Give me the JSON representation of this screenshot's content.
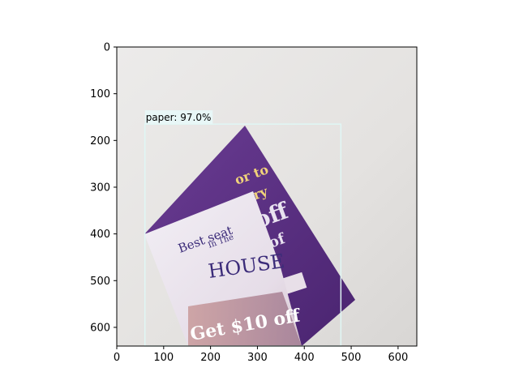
{
  "axes": {
    "x_range": [
      0,
      640
    ],
    "y_range": [
      640,
      0
    ],
    "x_ticks": [
      0,
      100,
      200,
      300,
      400,
      500,
      600
    ],
    "y_ticks": [
      0,
      100,
      200,
      300,
      400,
      500,
      600
    ],
    "grid": false
  },
  "image": {
    "scene": "photo of folded purple and white coupon paper on a light grey surface",
    "flyer_text": {
      "line1": "Best seat",
      "line2": "In The",
      "line3": "HOUSE",
      "offer": "Get $10 off",
      "purple_fragments": [
        "or to",
        "ery",
        "off",
        "of"
      ]
    }
  },
  "detection": {
    "label": "paper: 97.0%",
    "class": "paper",
    "score_percent": 97.0,
    "box": {
      "x_min": 60,
      "y_min": 165,
      "x_max": 478,
      "y_max": 640
    },
    "box_color": "#e0f7f5",
    "label_bg": "#e8f7f7"
  },
  "colors": {
    "background": "#e8e6e4",
    "purple": "#5e3483",
    "white_paper": "#eeeaf2"
  }
}
